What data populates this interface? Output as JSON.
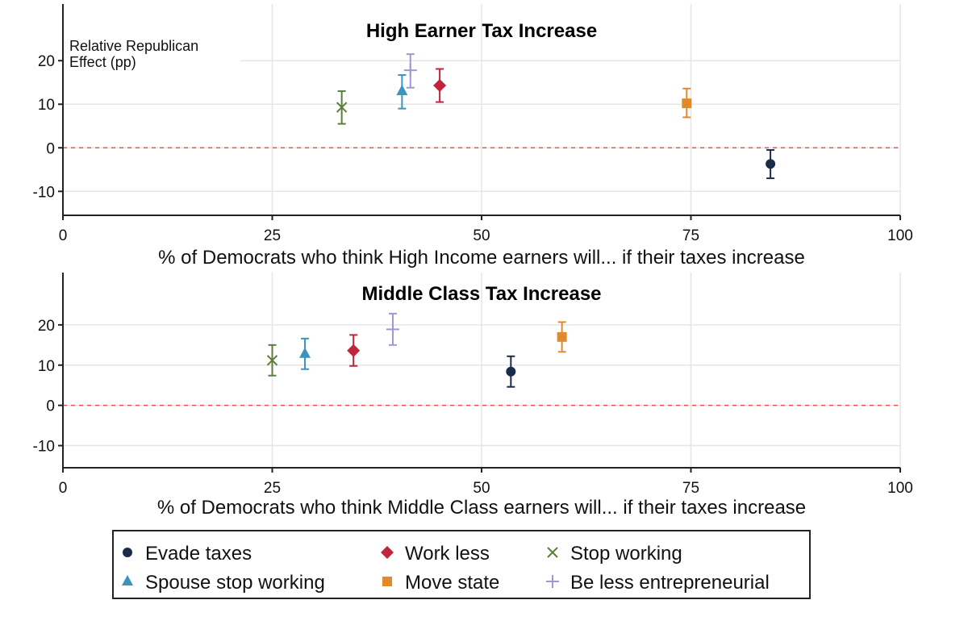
{
  "chart_data": [
    {
      "type": "scatter",
      "title": "High Earner Tax Increase",
      "ylabel": "Relative Republican Effect (pp)",
      "ylabel_lines": [
        "Relative Republican",
        "Effect (pp)"
      ],
      "xlabel": "% of Democrats who think High Income earners will... if their taxes increase",
      "xlim": [
        0,
        100
      ],
      "ylim": [
        -15.5,
        33
      ],
      "xticks": [
        0,
        25,
        50,
        75,
        100
      ],
      "yticks": [
        20,
        10,
        0,
        -10
      ],
      "reference_line_y": 0,
      "grid": true,
      "series": [
        {
          "name": "Evade taxes",
          "x": 84.5,
          "y": -3.7,
          "ci": [
            -7.0,
            -0.5
          ]
        },
        {
          "name": "Work less",
          "x": 45.0,
          "y": 14.3,
          "ci": [
            10.5,
            18.1
          ]
        },
        {
          "name": "Stop working",
          "x": 33.3,
          "y": 9.3,
          "ci": [
            5.5,
            13.0
          ]
        },
        {
          "name": "Spouse stop working",
          "x": 40.5,
          "y": 13.0,
          "ci": [
            9.0,
            16.7
          ]
        },
        {
          "name": "Move state",
          "x": 74.5,
          "y": 10.2,
          "ci": [
            7.0,
            13.6
          ]
        },
        {
          "name": "Be less entrepreneurial",
          "x": 41.5,
          "y": 17.8,
          "ci": [
            13.8,
            21.5
          ]
        }
      ]
    },
    {
      "type": "scatter",
      "title": "Middle Class Tax Increase",
      "xlabel": "% of Democrats who think Middle Class earners will... if their taxes increase",
      "xlim": [
        0,
        100
      ],
      "ylim": [
        -15.5,
        33
      ],
      "xticks": [
        0,
        25,
        50,
        75,
        100
      ],
      "yticks": [
        20,
        10,
        0,
        -10
      ],
      "reference_line_y": 0,
      "grid": true,
      "series": [
        {
          "name": "Evade taxes",
          "x": 53.5,
          "y": 8.4,
          "ci": [
            4.6,
            12.2
          ]
        },
        {
          "name": "Work less",
          "x": 34.7,
          "y": 13.6,
          "ci": [
            9.8,
            17.5
          ]
        },
        {
          "name": "Stop working",
          "x": 25.0,
          "y": 11.2,
          "ci": [
            7.4,
            15.0
          ]
        },
        {
          "name": "Spouse stop working",
          "x": 28.9,
          "y": 12.8,
          "ci": [
            9.0,
            16.6
          ]
        },
        {
          "name": "Move state",
          "x": 59.6,
          "y": 17.0,
          "ci": [
            13.3,
            20.7
          ]
        },
        {
          "name": "Be less entrepreneurial",
          "x": 39.4,
          "y": 18.9,
          "ci": [
            15.0,
            22.8
          ]
        }
      ]
    }
  ],
  "legend": {
    "placement": "bottom",
    "items": [
      {
        "label": "Evade taxes",
        "marker": "circle",
        "color": "#1a2b4c"
      },
      {
        "label": "Work less",
        "marker": "diamond",
        "color": "#c1253c"
      },
      {
        "label": "Stop working",
        "marker": "x",
        "color": "#5b7f3a"
      },
      {
        "label": "Spouse stop working",
        "marker": "triangle",
        "color": "#3a94c0"
      },
      {
        "label": "Move state",
        "marker": "square",
        "color": "#e08a2c"
      },
      {
        "label": "Be less entrepreneurial",
        "marker": "plus",
        "color": "#9f98d6"
      }
    ]
  },
  "colors": {
    "reference_line": "#e8554d",
    "grid": "#e6e6e6",
    "axis": "#222222"
  }
}
